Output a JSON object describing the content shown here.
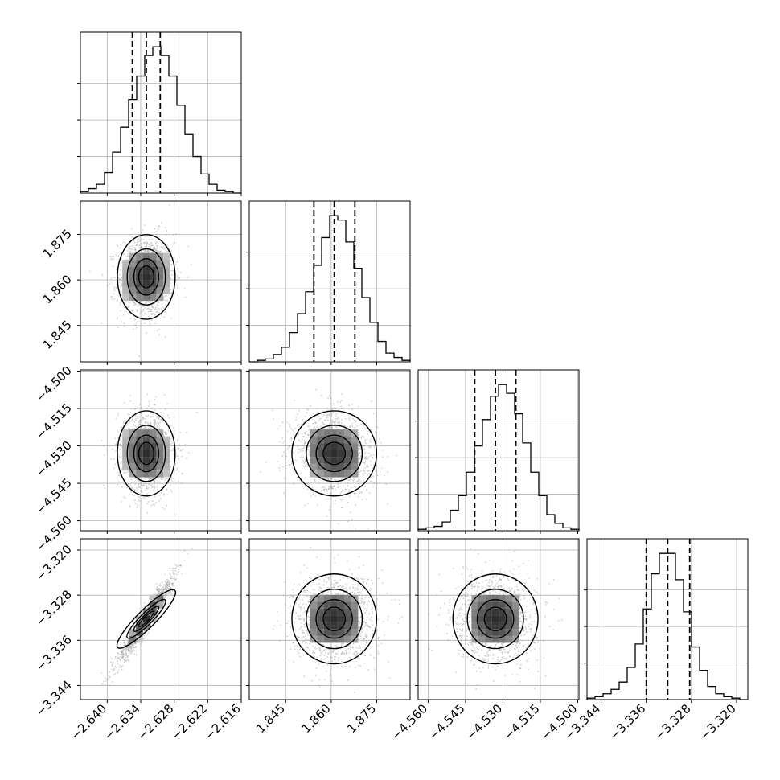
{
  "chart_data": {
    "type": "corner",
    "parameters": [
      {
        "ticks": [
          -2.64,
          -2.634,
          -2.628,
          -2.622,
          -2.616
        ],
        "tick_labels": [
          "−2.640",
          "−2.634",
          "−2.628",
          "−2.622",
          "−2.616"
        ],
        "range": [
          -2.6448,
          -2.616
        ],
        "median": -2.633,
        "q16": -2.6355,
        "q84": -2.6305
      },
      {
        "ticks": [
          1.845,
          1.86,
          1.875
        ],
        "tick_labels": [
          "1.845",
          "1.860",
          "1.875"
        ],
        "range": [
          1.833,
          1.886
        ],
        "median": 1.861,
        "q16": 1.8543,
        "q84": 1.8678
      },
      {
        "ticks": [
          -4.56,
          -4.545,
          -4.53,
          -4.515,
          -4.5
        ],
        "tick_labels": [
          "−4.560",
          "−4.545",
          "−4.530",
          "−4.515",
          "−4.500"
        ],
        "range": [
          -4.564,
          -4.4995
        ],
        "median": -4.533,
        "q16": -4.5413,
        "q84": -4.5248
      },
      {
        "ticks": [
          -3.344,
          -3.336,
          -3.328,
          -3.32
        ],
        "tick_labels": [
          "−3.344",
          "−3.336",
          "−3.328",
          "−3.320"
        ],
        "range": [
          -3.3465,
          -3.318
        ],
        "median": -3.3322,
        "q16": -3.336,
        "q84": -3.3283
      }
    ],
    "histograms": [
      [
        1,
        3,
        6,
        14,
        28,
        45,
        64,
        80,
        94,
        100,
        94,
        80,
        60,
        40,
        25,
        13,
        6,
        2,
        1,
        0
      ],
      [
        0,
        1,
        2,
        5,
        10,
        20,
        33,
        48,
        66,
        85,
        100,
        97,
        82,
        64,
        44,
        27,
        14,
        6,
        3,
        1
      ],
      [
        1,
        2,
        3,
        6,
        14,
        24,
        40,
        58,
        76,
        92,
        100,
        94,
        80,
        60,
        40,
        24,
        11,
        5,
        2,
        1
      ],
      [
        1,
        2,
        4,
        7,
        12,
        22,
        38,
        62,
        86,
        100,
        100,
        82,
        60,
        36,
        20,
        9,
        4,
        2,
        1,
        0
      ]
    ],
    "correlations": {
      "1-0": 0.05,
      "2-0": -0.05,
      "2-1": -0.15,
      "3-0": 0.96,
      "3-1": 0.05,
      "3-2": -0.05
    },
    "grid": true,
    "quantile_lines": "dashed"
  }
}
